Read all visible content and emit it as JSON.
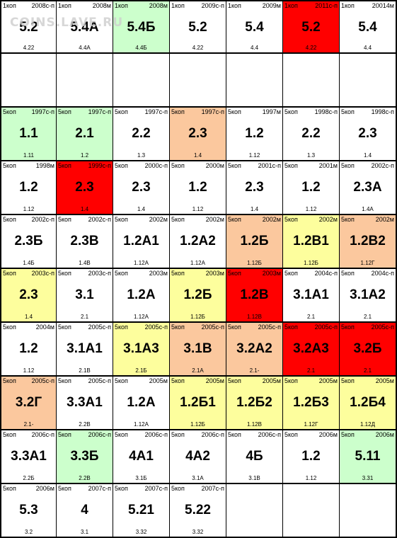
{
  "watermark": "COINS.LAVE.RU",
  "colors": {
    "white": "#ffffff",
    "green": "#ccffcc",
    "orange": "#fbc89e",
    "yellow": "#fdfe9d",
    "red": "#ff0000"
  },
  "rows": [
    [
      {
        "denom": "1коп",
        "year": "2008с-п",
        "main": "5.2",
        "ref": "4.22",
        "color": "white"
      },
      {
        "denom": "1коп",
        "year": "2008м",
        "main": "5.4А",
        "ref": "4.4А",
        "color": "white"
      },
      {
        "denom": "1коп",
        "year": "2008м",
        "main": "5.4Б",
        "ref": "4.4Б",
        "color": "green"
      },
      {
        "denom": "1коп",
        "year": "2009с-п",
        "main": "5.2",
        "ref": "4.22",
        "color": "white"
      },
      {
        "denom": "1коп",
        "year": "2009м",
        "main": "5.4",
        "ref": "4.4",
        "color": "white"
      },
      {
        "denom": "1коп",
        "year": "2011с-п",
        "main": "5.2",
        "ref": "4.22",
        "color": "red"
      },
      {
        "denom": "1коп",
        "year": "20014м",
        "main": "5.4",
        "ref": "4.4",
        "color": "white"
      }
    ],
    [
      {
        "denom": "",
        "year": "",
        "main": "",
        "ref": "",
        "color": "white"
      },
      {
        "denom": "",
        "year": "",
        "main": "",
        "ref": "",
        "color": "white"
      },
      {
        "denom": "",
        "year": "",
        "main": "",
        "ref": "",
        "color": "white"
      },
      {
        "denom": "",
        "year": "",
        "main": "",
        "ref": "",
        "color": "white"
      },
      {
        "denom": "",
        "year": "",
        "main": "",
        "ref": "",
        "color": "white"
      },
      {
        "denom": "",
        "year": "",
        "main": "",
        "ref": "",
        "color": "white"
      },
      {
        "denom": "",
        "year": "",
        "main": "",
        "ref": "",
        "color": "white"
      }
    ],
    [
      {
        "denom": "5коп",
        "year": "1997с-п",
        "main": "1.1",
        "ref": "1.11",
        "color": "green"
      },
      {
        "denom": "5коп",
        "year": "1997с-п",
        "main": "2.1",
        "ref": "1.2",
        "color": "green"
      },
      {
        "denom": "5коп",
        "year": "1997с-п",
        "main": "2.2",
        "ref": "1.3",
        "color": "white"
      },
      {
        "denom": "5коп",
        "year": "1997с-п",
        "main": "2.3",
        "ref": "1.4",
        "color": "orange"
      },
      {
        "denom": "5коп",
        "year": "1997м",
        "main": "1.2",
        "ref": "1.12",
        "color": "white"
      },
      {
        "denom": "5коп",
        "year": "1998с-п",
        "main": "2.2",
        "ref": "1.3",
        "color": "white"
      },
      {
        "denom": "5коп",
        "year": "1998с-п",
        "main": "2.3",
        "ref": "1.4",
        "color": "white"
      }
    ],
    [
      {
        "denom": "5коп",
        "year": "1998м",
        "main": "1.2",
        "ref": "1.12",
        "color": "white"
      },
      {
        "denom": "5коп",
        "year": "1999с-п",
        "main": "2.3",
        "ref": "1.4",
        "color": "red"
      },
      {
        "denom": "5коп",
        "year": "2000с-п",
        "main": "2.3",
        "ref": "1.4",
        "color": "white"
      },
      {
        "denom": "5коп",
        "year": "2000м",
        "main": "1.2",
        "ref": "1.12",
        "color": "white"
      },
      {
        "denom": "5коп",
        "year": "2001с-п",
        "main": "2.3",
        "ref": "1.4",
        "color": "white"
      },
      {
        "denom": "5коп",
        "year": "2001м",
        "main": "1.2",
        "ref": "1.12",
        "color": "white"
      },
      {
        "denom": "5коп",
        "year": "2002с-п",
        "main": "2.3А",
        "ref": "1.4А",
        "color": "white"
      }
    ],
    [
      {
        "denom": "5коп",
        "year": "2002с-п",
        "main": "2.3Б",
        "ref": "1.4Б",
        "color": "white"
      },
      {
        "denom": "5коп",
        "year": "2002с-п",
        "main": "2.3В",
        "ref": "1.4В",
        "color": "white"
      },
      {
        "denom": "5коп",
        "year": "2002м",
        "main": "1.2А1",
        "ref": "1.12А",
        "color": "white"
      },
      {
        "denom": "5коп",
        "year": "2002м",
        "main": "1.2А2",
        "ref": "1.12А",
        "color": "white"
      },
      {
        "denom": "5коп",
        "year": "2002м",
        "main": "1.2Б",
        "ref": "1.12Б",
        "color": "orange"
      },
      {
        "denom": "5коп",
        "year": "2002м",
        "main": "1.2В1",
        "ref": "1.12Б",
        "color": "yellow"
      },
      {
        "denom": "5коп",
        "year": "2002м",
        "main": "1.2В2",
        "ref": "1.12Г",
        "color": "orange"
      }
    ],
    [
      {
        "denom": "5коп",
        "year": "2003с-п",
        "main": "2.3",
        "ref": "1.4",
        "color": "yellow"
      },
      {
        "denom": "5коп",
        "year": "2003с-п",
        "main": "3.1",
        "ref": "2.1",
        "color": "white"
      },
      {
        "denom": "5коп",
        "year": "2003м",
        "main": "1.2А",
        "ref": "1.12А",
        "color": "white"
      },
      {
        "denom": "5коп",
        "year": "2003м",
        "main": "1.2Б",
        "ref": "1.12Б",
        "color": "yellow"
      },
      {
        "denom": "5коп",
        "year": "2003м",
        "main": "1.2В",
        "ref": "1.12В",
        "color": "red"
      },
      {
        "denom": "5коп",
        "year": "2004с-п",
        "main": "3.1А1",
        "ref": "2.1",
        "color": "white"
      },
      {
        "denom": "5коп",
        "year": "2004с-п",
        "main": "3.1А2",
        "ref": "2.1",
        "color": "white"
      }
    ],
    [
      {
        "denom": "5коп",
        "year": "2004м",
        "main": "1.2",
        "ref": "1.12",
        "color": "white"
      },
      {
        "denom": "5коп",
        "year": "2005с-п",
        "main": "3.1А1",
        "ref": "2.1В",
        "color": "white"
      },
      {
        "denom": "5коп",
        "year": "2005с-п",
        "main": "3.1А3",
        "ref": "2.1Б",
        "color": "yellow"
      },
      {
        "denom": "5коп",
        "year": "2005с-п",
        "main": "3.1В",
        "ref": "2.1А",
        "color": "orange"
      },
      {
        "denom": "5коп",
        "year": "2005с-п",
        "main": "3.2А2",
        "ref": "2.1-",
        "color": "orange"
      },
      {
        "denom": "5коп",
        "year": "2005с-п",
        "main": "3.2А3",
        "ref": "2.1",
        "color": "red"
      },
      {
        "denom": "5коп",
        "year": "2005с-п",
        "main": "3.2Б",
        "ref": "2.1",
        "color": "red"
      }
    ],
    [
      {
        "denom": "5коп",
        "year": "2005с-п",
        "main": "3.2Г",
        "ref": "2.1-",
        "color": "orange"
      },
      {
        "denom": "5коп",
        "year": "2005с-п",
        "main": "3.3А1",
        "ref": "2.2В",
        "color": "white"
      },
      {
        "denom": "5коп",
        "year": "2005м",
        "main": "1.2А",
        "ref": "1.12А",
        "color": "white"
      },
      {
        "denom": "5коп",
        "year": "2005м",
        "main": "1.2Б1",
        "ref": "1.12Б",
        "color": "yellow"
      },
      {
        "denom": "5коп",
        "year": "2005м",
        "main": "1.2Б2",
        "ref": "1.12В",
        "color": "yellow"
      },
      {
        "denom": "5коп",
        "year": "2005м",
        "main": "1.2Б3",
        "ref": "1.12Г",
        "color": "yellow"
      },
      {
        "denom": "5коп",
        "year": "2005м",
        "main": "1.2Б4",
        "ref": "1.12Д",
        "color": "yellow"
      }
    ],
    [
      {
        "denom": "5коп",
        "year": "2006с-п",
        "main": "3.3А1",
        "ref": "2.2Б",
        "color": "white"
      },
      {
        "denom": "5коп",
        "year": "2006с-п",
        "main": "3.3Б",
        "ref": "2.2В",
        "color": "green"
      },
      {
        "denom": "5коп",
        "year": "2006с-п",
        "main": "4А1",
        "ref": "3.1Б",
        "color": "white"
      },
      {
        "denom": "5коп",
        "year": "2006с-п",
        "main": "4А2",
        "ref": "3.1А",
        "color": "white"
      },
      {
        "denom": "5коп",
        "year": "2006с-п",
        "main": "4Б",
        "ref": "3.1В",
        "color": "white"
      },
      {
        "denom": "5коп",
        "year": "2006м",
        "main": "1.2",
        "ref": "1.12",
        "color": "white"
      },
      {
        "denom": "5коп",
        "year": "2006м",
        "main": "5.11",
        "ref": "3.31",
        "color": "green"
      }
    ],
    [
      {
        "denom": "5коп",
        "year": "2006м",
        "main": "5.3",
        "ref": "3.2",
        "color": "white"
      },
      {
        "denom": "5коп",
        "year": "2007с-п",
        "main": "4",
        "ref": "3.1",
        "color": "white"
      },
      {
        "denom": "5коп",
        "year": "2007с-п",
        "main": "5.21",
        "ref": "3.32",
        "color": "white"
      },
      {
        "denom": "5коп",
        "year": "2007с-п",
        "main": "5.22",
        "ref": "3.32",
        "color": "white"
      },
      {
        "denom": "",
        "year": "",
        "main": "",
        "ref": "",
        "color": "white"
      },
      {
        "denom": "",
        "year": "",
        "main": "",
        "ref": "",
        "color": "white"
      },
      {
        "denom": "",
        "year": "",
        "main": "",
        "ref": "",
        "color": "white"
      }
    ]
  ]
}
